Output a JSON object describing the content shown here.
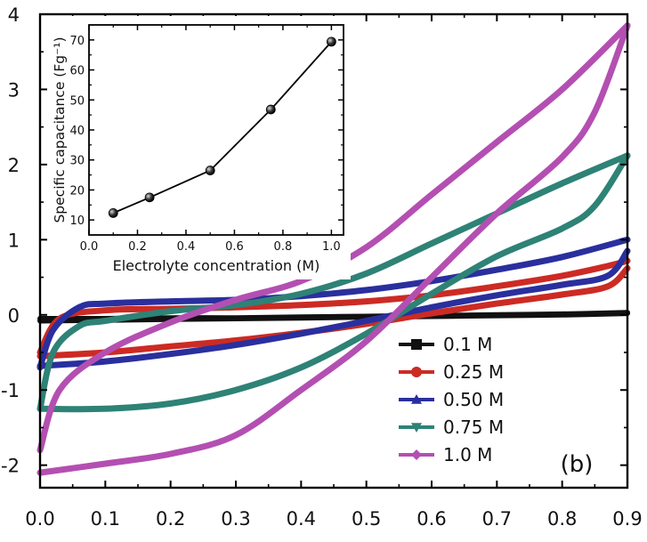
{
  "panel_label": "(b)",
  "chart_data": [
    {
      "type": "line",
      "title": "",
      "xlabel": "",
      "ylabel": "",
      "xlim": [
        0.0,
        0.9
      ],
      "ylim": [
        -2.3,
        4.0
      ],
      "x_ticks": [
        "0.0",
        "0.1",
        "0.2",
        "0.3",
        "0.4",
        "0.5",
        "0.6",
        "0.7",
        "0.8",
        "0.9"
      ],
      "y_ticks": [
        "-2",
        "-1",
        "0",
        "1",
        "2",
        "3",
        "4"
      ],
      "legend_position": "bottom-right",
      "grid": false,
      "series": [
        {
          "name": "0.1 M",
          "color": "#111111",
          "marker": "square",
          "upper": [
            [
              0.0,
              -0.05
            ],
            [
              0.1,
              -0.05
            ],
            [
              0.2,
              -0.04
            ],
            [
              0.3,
              -0.04
            ],
            [
              0.4,
              -0.03
            ],
            [
              0.5,
              -0.02
            ],
            [
              0.6,
              -0.01
            ],
            [
              0.7,
              0.0
            ],
            [
              0.8,
              0.01
            ],
            [
              0.9,
              0.03
            ]
          ],
          "lower": [
            [
              0.0,
              -0.08
            ],
            [
              0.1,
              -0.07
            ],
            [
              0.2,
              -0.06
            ],
            [
              0.3,
              -0.05
            ],
            [
              0.4,
              -0.04
            ],
            [
              0.5,
              -0.03
            ],
            [
              0.6,
              -0.02
            ],
            [
              0.7,
              -0.01
            ],
            [
              0.8,
              0.0
            ],
            [
              0.9,
              0.02
            ]
          ]
        },
        {
          "name": "0.25 M",
          "color": "#cc2b24",
          "marker": "circle",
          "upper": [
            [
              0.0,
              -0.5
            ],
            [
              0.03,
              -0.05
            ],
            [
              0.1,
              0.06
            ],
            [
              0.2,
              0.08
            ],
            [
              0.3,
              0.1
            ],
            [
              0.4,
              0.13
            ],
            [
              0.5,
              0.18
            ],
            [
              0.6,
              0.26
            ],
            [
              0.7,
              0.38
            ],
            [
              0.8,
              0.52
            ],
            [
              0.87,
              0.65
            ],
            [
              0.9,
              0.72
            ]
          ],
          "lower": [
            [
              0.0,
              -0.55
            ],
            [
              0.1,
              -0.5
            ],
            [
              0.2,
              -0.42
            ],
            [
              0.3,
              -0.34
            ],
            [
              0.4,
              -0.24
            ],
            [
              0.5,
              -0.12
            ],
            [
              0.6,
              0.02
            ],
            [
              0.7,
              0.15
            ],
            [
              0.8,
              0.27
            ],
            [
              0.87,
              0.38
            ],
            [
              0.9,
              0.62
            ]
          ]
        },
        {
          "name": "0.50 M",
          "color": "#2a2f9e",
          "marker": "triangle",
          "upper": [
            [
              0.0,
              -0.7
            ],
            [
              0.02,
              -0.2
            ],
            [
              0.06,
              0.1
            ],
            [
              0.1,
              0.15
            ],
            [
              0.2,
              0.18
            ],
            [
              0.3,
              0.2
            ],
            [
              0.4,
              0.25
            ],
            [
              0.5,
              0.33
            ],
            [
              0.6,
              0.45
            ],
            [
              0.7,
              0.6
            ],
            [
              0.8,
              0.77
            ],
            [
              0.9,
              1.0
            ]
          ],
          "lower": [
            [
              0.0,
              -0.68
            ],
            [
              0.1,
              -0.62
            ],
            [
              0.2,
              -0.52
            ],
            [
              0.3,
              -0.4
            ],
            [
              0.4,
              -0.25
            ],
            [
              0.5,
              -0.08
            ],
            [
              0.6,
              0.1
            ],
            [
              0.7,
              0.26
            ],
            [
              0.8,
              0.4
            ],
            [
              0.87,
              0.52
            ],
            [
              0.9,
              0.85
            ]
          ]
        },
        {
          "name": "0.75 M",
          "color": "#2e8276",
          "marker": "inverted-triangle",
          "upper": [
            [
              0.0,
              -1.25
            ],
            [
              0.02,
              -0.5
            ],
            [
              0.06,
              -0.15
            ],
            [
              0.1,
              -0.08
            ],
            [
              0.2,
              0.05
            ],
            [
              0.3,
              0.13
            ],
            [
              0.4,
              0.28
            ],
            [
              0.5,
              0.55
            ],
            [
              0.6,
              0.95
            ],
            [
              0.7,
              1.35
            ],
            [
              0.8,
              1.75
            ],
            [
              0.9,
              2.12
            ]
          ],
          "lower": [
            [
              0.0,
              -1.25
            ],
            [
              0.1,
              -1.25
            ],
            [
              0.2,
              -1.18
            ],
            [
              0.3,
              -1.0
            ],
            [
              0.4,
              -0.7
            ],
            [
              0.5,
              -0.25
            ],
            [
              0.6,
              0.28
            ],
            [
              0.7,
              0.78
            ],
            [
              0.8,
              1.15
            ],
            [
              0.85,
              1.45
            ],
            [
              0.9,
              2.12
            ]
          ]
        },
        {
          "name": "1.0 M",
          "color": "#b44fb2",
          "marker": "diamond",
          "upper": [
            [
              0.0,
              -1.8
            ],
            [
              0.03,
              -1.0
            ],
            [
              0.1,
              -0.5
            ],
            [
              0.2,
              -0.1
            ],
            [
              0.3,
              0.2
            ],
            [
              0.4,
              0.45
            ],
            [
              0.5,
              0.9
            ],
            [
              0.6,
              1.6
            ],
            [
              0.7,
              2.3
            ],
            [
              0.8,
              3.0
            ],
            [
              0.9,
              3.85
            ]
          ],
          "lower": [
            [
              0.0,
              -2.1
            ],
            [
              0.1,
              -1.98
            ],
            [
              0.2,
              -1.85
            ],
            [
              0.3,
              -1.6
            ],
            [
              0.4,
              -1.0
            ],
            [
              0.5,
              -0.35
            ],
            [
              0.6,
              0.5
            ],
            [
              0.7,
              1.35
            ],
            [
              0.8,
              2.1
            ],
            [
              0.85,
              2.7
            ],
            [
              0.9,
              3.85
            ]
          ]
        }
      ]
    },
    {
      "type": "line",
      "title": "",
      "xlabel": "Electrolyte concentration (M)",
      "ylabel": "Specific capacitance  (Fg⁻¹)",
      "xlim": [
        0.0,
        1.05
      ],
      "ylim": [
        5,
        75
      ],
      "x_ticks": [
        "0.0",
        "0.2",
        "0.4",
        "0.6",
        "0.8",
        "1.0"
      ],
      "y_ticks": [
        "10",
        "20",
        "30",
        "40",
        "50",
        "60",
        "70"
      ],
      "grid": false,
      "x": [
        0.1,
        0.25,
        0.5,
        0.75,
        1.0
      ],
      "values": [
        12.3,
        17.5,
        26.5,
        46.8,
        69.4
      ]
    }
  ]
}
